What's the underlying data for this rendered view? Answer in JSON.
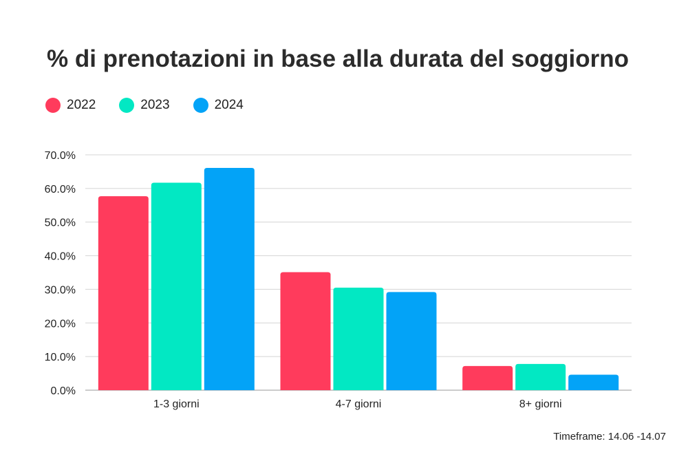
{
  "title": "% di prenotazioni in base alla durata del soggiorno",
  "footnote": "Timeframe: 14.06 -14.07",
  "chart_data": {
    "type": "bar",
    "categories": [
      "1-3 giorni",
      "4-7 giorni",
      "8+ giorni"
    ],
    "series": [
      {
        "name": "2022",
        "color": "#ff3b5c",
        "values": [
          57.7,
          35.1,
          7.2
        ]
      },
      {
        "name": "2023",
        "color": "#02e8c3",
        "values": [
          61.7,
          30.5,
          7.8
        ]
      },
      {
        "name": "2024",
        "color": "#03a3f7",
        "values": [
          66.1,
          29.2,
          4.6
        ]
      }
    ],
    "ylim": [
      0,
      70
    ],
    "yticks": [
      "0.0%",
      "10.0%",
      "20.0%",
      "30.0%",
      "40.0%",
      "50.0%",
      "60.0%",
      "70.0%"
    ],
    "grid": true,
    "legend": "top-left"
  }
}
